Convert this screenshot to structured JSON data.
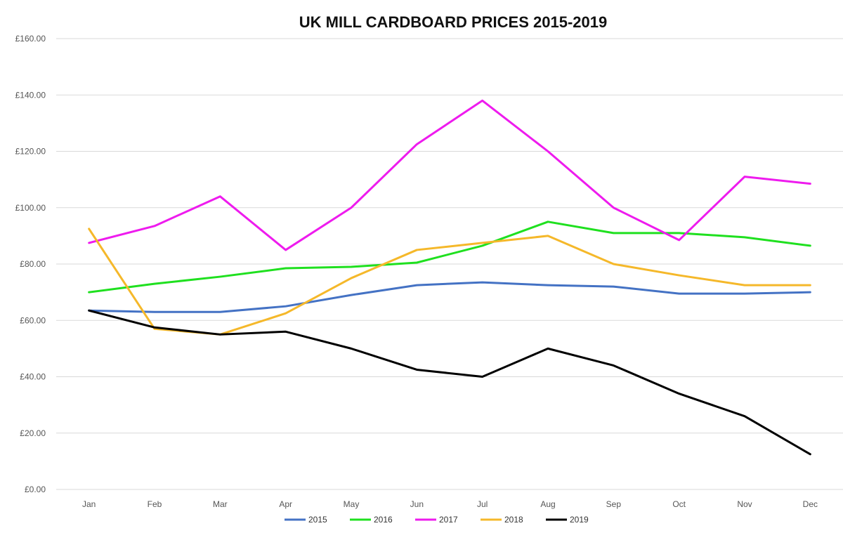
{
  "chart_data": {
    "type": "line",
    "title": "UK MILL CARDBOARD PRICES 2015-2019",
    "xlabel": "",
    "ylabel": "",
    "categories": [
      "Jan",
      "Feb",
      "Mar",
      "Apr",
      "May",
      "Jun",
      "Jul",
      "Aug",
      "Sep",
      "Oct",
      "Nov",
      "Dec"
    ],
    "y_ticks": [
      "£0.00",
      "£20.00",
      "£40.00",
      "£60.00",
      "£80.00",
      "£100.00",
      "£120.00",
      "£140.00",
      "£160.00"
    ],
    "ylim": [
      0,
      160
    ],
    "grid": true,
    "legend_position": "bottom",
    "series": [
      {
        "name": "2015",
        "color": "#4472C4",
        "values": [
          63.5,
          63,
          63,
          65,
          69,
          72.5,
          73.5,
          72.5,
          72,
          69.5,
          69.5,
          70
        ]
      },
      {
        "name": "2016",
        "color": "#1FE01F",
        "values": [
          70,
          73,
          75.5,
          78.5,
          79,
          80.5,
          86.5,
          95,
          91,
          91,
          89.5,
          86.5
        ]
      },
      {
        "name": "2017",
        "color": "#EE1BEE",
        "values": [
          87.5,
          93.5,
          104,
          85,
          100,
          122.5,
          138,
          120,
          100,
          88.5,
          111,
          108.5
        ]
      },
      {
        "name": "2018",
        "color": "#F5B82A",
        "values": [
          92.5,
          57,
          55,
          62.5,
          75,
          85,
          87.5,
          90,
          80,
          76,
          72.5,
          72.5
        ]
      },
      {
        "name": "2019",
        "color": "#000000",
        "values": [
          63.5,
          57.5,
          55,
          56,
          50,
          42.5,
          40,
          50,
          44,
          34,
          26,
          12.5
        ]
      }
    ]
  }
}
